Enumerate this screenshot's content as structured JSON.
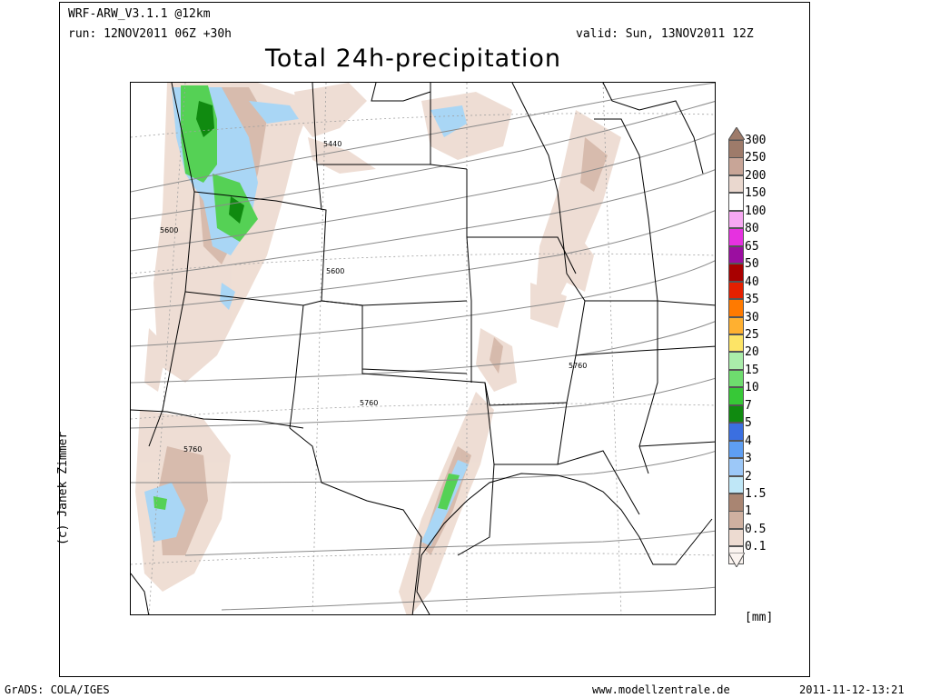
{
  "header": {
    "model": "WRF-ARW_V3.1.1 @12km",
    "run": "run: 12NOV2011 06Z +30h",
    "valid": "valid: Sun, 13NOV2011 12Z",
    "title": "Total 24h-precipitation"
  },
  "credit": "(c) Janek Zimmer",
  "map": {
    "contour_labels": [
      "5440",
      "5600",
      "5600",
      "5760",
      "5760",
      "5760"
    ]
  },
  "legend": {
    "unit": "[mm]",
    "levels": [
      {
        "label": "300",
        "color": "#9e7b6a"
      },
      {
        "label": "250",
        "color": "#c8a597"
      },
      {
        "label": "200",
        "color": "#ead8cf"
      },
      {
        "label": "150",
        "color": "#ffffff"
      },
      {
        "label": "100",
        "color": "#f7a8f2"
      },
      {
        "label": "80",
        "color": "#e631e0"
      },
      {
        "label": "65",
        "color": "#9b0ea0"
      },
      {
        "label": "50",
        "color": "#a80000"
      },
      {
        "label": "40",
        "color": "#e52000"
      },
      {
        "label": "35",
        "color": "#ff7a00"
      },
      {
        "label": "30",
        "color": "#ffb030"
      },
      {
        "label": "25",
        "color": "#fde466"
      },
      {
        "label": "20",
        "color": "#aaedaa"
      },
      {
        "label": "15",
        "color": "#6edc6e"
      },
      {
        "label": "10",
        "color": "#37c837"
      },
      {
        "label": "7",
        "color": "#108a10"
      },
      {
        "label": "5",
        "color": "#3b6fe0"
      },
      {
        "label": "4",
        "color": "#5e9ef2"
      },
      {
        "label": "3",
        "color": "#9cc8f8"
      },
      {
        "label": "2",
        "color": "#bfe7f7"
      },
      {
        "label": "1.5",
        "color": "#a98572"
      },
      {
        "label": "1",
        "color": "#cfb0a0"
      },
      {
        "label": "0.5",
        "color": "#eddbd1"
      },
      {
        "label": "0.1",
        "color": "#fbf4f0"
      }
    ]
  },
  "footer": {
    "left": "GrADS: COLA/IGES",
    "center": "www.modellzentrale.de",
    "right": "2011-11-12-13:21"
  }
}
